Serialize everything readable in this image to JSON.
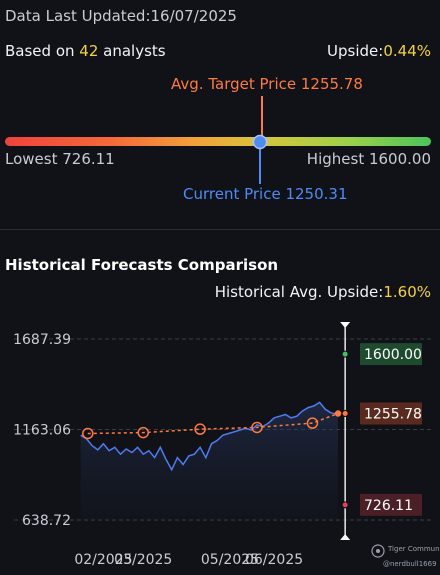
{
  "header": {
    "updated": "Data Last Updated:16/07/2025",
    "based_prefix": "Based on ",
    "analyst_count": "42",
    "based_suffix": " analysts",
    "upside_label": "Upside:",
    "upside_value": "0.44%"
  },
  "gauge": {
    "target_label": "Avg. Target Price 1255.78",
    "current_label": "Current Price 1250.31",
    "lowest_label": "Lowest 726.11",
    "highest_label": "Highest 1600.00",
    "low": 726.11,
    "high": 1600.0,
    "current": 1250.31,
    "target": 1255.78
  },
  "history": {
    "title": "Historical Forecasts Comparison",
    "upside_label": "Historical Avg. Upside:",
    "upside_value": "1.60%"
  },
  "watermark": {
    "brand": "Tiger Community",
    "user": "@nerdbull1669"
  },
  "colors": {
    "price_line": "#4d7df0",
    "forecast": "#ff7a3d",
    "high_badge_bg": "#1e4a2e",
    "target_badge_bg": "#5a2a1e",
    "low_badge_bg": "#4a1f25",
    "accent_yellow": "#f5d23a"
  },
  "chart_data": {
    "type": "line",
    "ylim": [
      638.72,
      1687.39
    ],
    "y_ticks": [
      "1687.39",
      "1163.06",
      "638.72"
    ],
    "x_ticks": [
      "02/2025",
      "03/2025",
      "05/2025",
      "06/2025"
    ],
    "x_tick_dates": [
      "2025-02-01",
      "2025-03-01",
      "2025-05-01",
      "2025-06-01"
    ],
    "x_range": [
      "2025-01-12",
      "2025-07-23"
    ],
    "series": [
      {
        "type": "price",
        "x": [
          "2025-01-16",
          "2025-01-20",
          "2025-01-24",
          "2025-01-28",
          "2025-02-01",
          "2025-02-05",
          "2025-02-09",
          "2025-02-13",
          "2025-02-17",
          "2025-02-21",
          "2025-02-25",
          "2025-03-01",
          "2025-03-05",
          "2025-03-09",
          "2025-03-13",
          "2025-03-17",
          "2025-03-21",
          "2025-03-25",
          "2025-03-29",
          "2025-04-02",
          "2025-04-06",
          "2025-04-10",
          "2025-04-14",
          "2025-04-18",
          "2025-04-22",
          "2025-04-26",
          "2025-04-30",
          "2025-05-04",
          "2025-05-08",
          "2025-05-12",
          "2025-05-16",
          "2025-05-20",
          "2025-05-24",
          "2025-05-28",
          "2025-06-01",
          "2025-06-05",
          "2025-06-09",
          "2025-06-13",
          "2025-06-17",
          "2025-06-21",
          "2025-06-25",
          "2025-06-29",
          "2025-07-03",
          "2025-07-07",
          "2025-07-11",
          "2025-07-16"
        ],
        "values": [
          1130,
          1110,
          1070,
          1045,
          1080,
          1040,
          1060,
          1020,
          1050,
          1030,
          1060,
          1020,
          1040,
          1000,
          1060,
          990,
          930,
          1000,
          960,
          1010,
          1020,
          1060,
          1000,
          1080,
          1100,
          1130,
          1140,
          1150,
          1160,
          1170,
          1160,
          1190,
          1180,
          1200,
          1230,
          1240,
          1250,
          1230,
          1240,
          1270,
          1290,
          1300,
          1320,
          1280,
          1260,
          1250
        ]
      },
      {
        "type": "avg_forecast",
        "x": [
          "2025-01-21",
          "2025-03-01",
          "2025-04-10",
          "2025-05-20",
          "2025-06-28",
          "2025-07-16"
        ],
        "values": [
          1140,
          1145,
          1165,
          1175,
          1200,
          1255.78
        ]
      }
    ],
    "current": {
      "date": "2025-07-16",
      "value": 1250.31
    },
    "projection": {
      "date": "2025-07-21",
      "high": {
        "value": 1600.0,
        "label": "1600.00"
      },
      "target": {
        "value": 1255.78,
        "label": "1255.78"
      },
      "low": {
        "value": 726.11,
        "label": "726.11"
      }
    }
  }
}
